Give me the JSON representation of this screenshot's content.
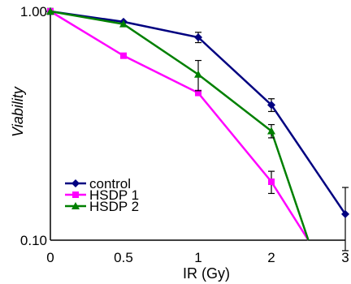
{
  "chart_data": {
    "type": "line",
    "xlabel": "IR (Gy)",
    "ylabel": "Viability",
    "y_scale": "log",
    "ylim": [
      0.1,
      1.0
    ],
    "xlim": [
      0,
      3
    ],
    "x_ticks": [
      "0",
      "0.5",
      "1",
      "2",
      "3"
    ],
    "y_ticks": [
      "0.10",
      "1.00"
    ],
    "grid": false,
    "legend_position": "bottom-left",
    "series": [
      {
        "name": "control",
        "color": "#000080",
        "marker": "diamond",
        "points": [
          {
            "x": 0,
            "y": 1.0,
            "err": 0.03
          },
          {
            "x": 0.5,
            "y": 0.9,
            "err": 0
          },
          {
            "x": 1,
            "y": 0.77,
            "err": 0.04
          },
          {
            "x": 2,
            "y": 0.39,
            "err": 0.025
          },
          {
            "x": 3,
            "y": 0.13,
            "err": 0.04
          }
        ]
      },
      {
        "name": "HSDP 1",
        "color": "#ff00ff",
        "marker": "square",
        "points": [
          {
            "x": 0,
            "y": 1.0,
            "err": 0
          },
          {
            "x": 0.5,
            "y": 0.64,
            "err": 0
          },
          {
            "x": 1,
            "y": 0.44,
            "err": 0
          },
          {
            "x": 2,
            "y": 0.18,
            "err": 0.02
          },
          {
            "x": 2.5,
            "y": 0.1,
            "err": 0
          }
        ]
      },
      {
        "name": "HSDP 2",
        "color": "#008000",
        "marker": "triangle",
        "points": [
          {
            "x": 0,
            "y": 1.0,
            "err": 0
          },
          {
            "x": 0.5,
            "y": 0.88,
            "err": 0
          },
          {
            "x": 1,
            "y": 0.53,
            "err": 0.08
          },
          {
            "x": 2,
            "y": 0.3,
            "err": 0.02
          },
          {
            "x": 2.5,
            "y": 0.1,
            "err": 0
          }
        ]
      }
    ]
  }
}
